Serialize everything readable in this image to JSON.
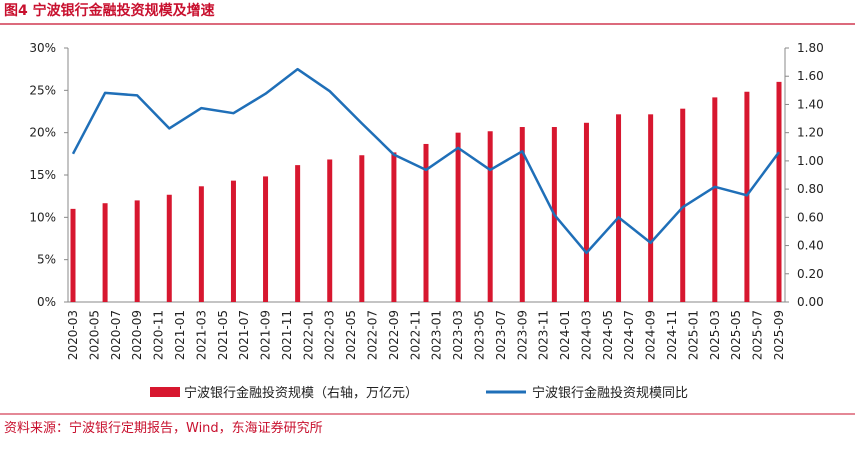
{
  "chart_data": {
    "type": "bar_line",
    "title": "图4  宁波银行金融投资规模及增速",
    "source": "资料来源：宁波银行定期报告，Wind，东海证券研究所",
    "categories": [
      "2020-03",
      null,
      "2020-05",
      null,
      "2020-07",
      null,
      "2020-09",
      null,
      "2020-11",
      null,
      "2021-01",
      null,
      "2021-03",
      null,
      "2021-05",
      null,
      "2021-07",
      null,
      "2021-09",
      null,
      "2021-11",
      null,
      "2022-01",
      null,
      "2022-03",
      null,
      "2022-05",
      null,
      "2022-07",
      null,
      "2022-09",
      null,
      "2022-11",
      null,
      "2023-01",
      null,
      "2023-03",
      null,
      "2023-05",
      null,
      "2023-07",
      null,
      "2023-09",
      null,
      "2023-11",
      null,
      "2024-01",
      null,
      "2024-03",
      null,
      "2024-05",
      null,
      "2024-07",
      null,
      "2024-09",
      null,
      "2024-11",
      null,
      "2025-01",
      null,
      "2025-03",
      null,
      "2025-05",
      null,
      "2025-07",
      null,
      "2025-09"
    ],
    "series": [
      {
        "name": "宁波银行金融投资规模（右轴，万亿元）",
        "type": "bar",
        "axis": "y2",
        "color": "#d7172f",
        "values": [
          0.66,
          null,
          null,
          0.7,
          null,
          null,
          0.72,
          null,
          null,
          0.76,
          null,
          null,
          0.82,
          null,
          null,
          0.86,
          null,
          null,
          0.89,
          null,
          null,
          0.97,
          null,
          null,
          1.01,
          null,
          null,
          1.04,
          null,
          null,
          1.06,
          null,
          null,
          1.12,
          null,
          null,
          1.2,
          null,
          null,
          1.21,
          null,
          null,
          1.24,
          null,
          null,
          1.24,
          null,
          null,
          1.27,
          null,
          null,
          1.33,
          null,
          null,
          1.33,
          null,
          null,
          1.37,
          null,
          null,
          1.45,
          null,
          null,
          1.49,
          null,
          null,
          1.56
        ]
      },
      {
        "name": "宁波银行金融投资规模同比",
        "type": "line",
        "color": "#1f6fb8",
        "values": [
          17.5,
          null,
          null,
          24.7,
          null,
          null,
          24.4,
          null,
          null,
          20.5,
          null,
          null,
          22.9,
          null,
          null,
          22.3,
          null,
          null,
          24.6,
          null,
          null,
          27.5,
          null,
          null,
          24.9,
          null,
          null,
          21.1,
          null,
          null,
          17.4,
          null,
          null,
          15.6,
          null,
          null,
          18.2,
          null,
          null,
          15.6,
          null,
          null,
          17.8,
          null,
          null,
          10.3,
          null,
          null,
          5.8,
          null,
          null,
          10.0,
          null,
          null,
          7.0,
          null,
          null,
          11.2,
          null,
          null,
          13.6,
          null,
          null,
          12.6,
          null,
          null,
          17.7
        ]
      }
    ],
    "ylim": [
      0,
      30
    ],
    "yticks": [
      {
        "value": 0,
        "label": "0%"
      },
      {
        "value": 5,
        "label": "5%"
      },
      {
        "value": 10,
        "label": "10%"
      },
      {
        "value": 15,
        "label": "15%"
      },
      {
        "value": 20,
        "label": "20%"
      },
      {
        "value": 25,
        "label": "25%"
      },
      {
        "value": 30,
        "label": "30%"
      }
    ],
    "y2lim": [
      0,
      1.8
    ],
    "y2ticks": [
      {
        "value": 0,
        "label": "0.00"
      },
      {
        "value": 0.2,
        "label": "0.20"
      },
      {
        "value": 0.4,
        "label": "0.40"
      },
      {
        "value": 0.6,
        "label": "0.60"
      },
      {
        "value": 0.8,
        "label": "0.80"
      },
      {
        "value": 1.0,
        "label": "1.00"
      },
      {
        "value": 1.2,
        "label": "1.20"
      },
      {
        "value": 1.4,
        "label": "1.40"
      },
      {
        "value": 1.6,
        "label": "1.60"
      },
      {
        "value": 1.8,
        "label": "1.80"
      }
    ],
    "legend": "bottom"
  }
}
